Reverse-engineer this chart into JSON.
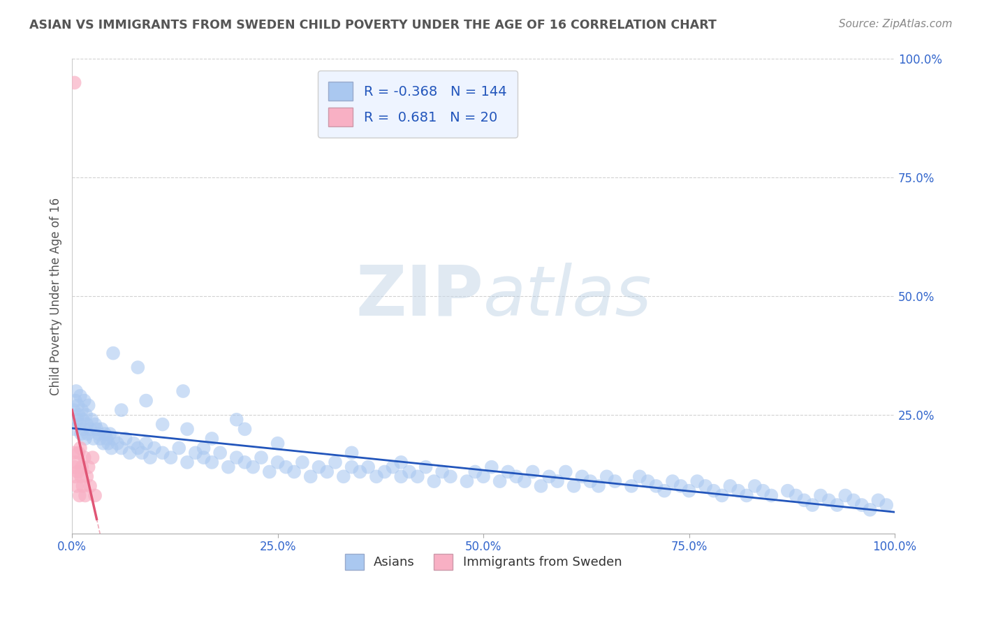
{
  "title": "ASIAN VS IMMIGRANTS FROM SWEDEN CHILD POVERTY UNDER THE AGE OF 16 CORRELATION CHART",
  "source": "Source: ZipAtlas.com",
  "ylabel": "Child Poverty Under the Age of 16",
  "xlim": [
    0,
    1.0
  ],
  "ylim": [
    0,
    1.0
  ],
  "xtick_vals": [
    0.0,
    0.25,
    0.5,
    0.75,
    1.0
  ],
  "xtick_labels": [
    "0.0%",
    "25.0%",
    "50.0%",
    "75.0%",
    "100.0%"
  ],
  "ytick_vals": [
    0.25,
    0.5,
    0.75,
    1.0
  ],
  "ytick_labels": [
    "25.0%",
    "50.0%",
    "75.0%",
    "100.0%"
  ],
  "asian_color": "#aac8f0",
  "sweden_color": "#f8b0c4",
  "asian_line_color": "#2255bb",
  "sweden_line_color": "#e05575",
  "R_asian": -0.368,
  "N_asian": 144,
  "R_sweden": 0.681,
  "N_sweden": 20,
  "legend_label_asian": "Asians",
  "legend_label_sweden": "Immigrants from Sweden",
  "watermark_zip": "ZIP",
  "watermark_atlas": "atlas",
  "background_color": "#ffffff",
  "grid_color": "#cccccc",
  "title_color": "#555555",
  "legend_text_color": "#2255bb",
  "asian_scatter_x": [
    0.002,
    0.003,
    0.004,
    0.005,
    0.006,
    0.007,
    0.008,
    0.009,
    0.01,
    0.011,
    0.012,
    0.013,
    0.014,
    0.015,
    0.016,
    0.017,
    0.018,
    0.019,
    0.02,
    0.022,
    0.024,
    0.026,
    0.028,
    0.03,
    0.032,
    0.034,
    0.036,
    0.038,
    0.04,
    0.042,
    0.044,
    0.046,
    0.048,
    0.05,
    0.055,
    0.06,
    0.065,
    0.07,
    0.075,
    0.08,
    0.085,
    0.09,
    0.095,
    0.1,
    0.11,
    0.12,
    0.13,
    0.14,
    0.15,
    0.16,
    0.17,
    0.18,
    0.19,
    0.2,
    0.21,
    0.22,
    0.23,
    0.24,
    0.25,
    0.26,
    0.27,
    0.28,
    0.29,
    0.3,
    0.31,
    0.32,
    0.33,
    0.34,
    0.35,
    0.36,
    0.37,
    0.38,
    0.39,
    0.4,
    0.41,
    0.42,
    0.43,
    0.44,
    0.45,
    0.46,
    0.48,
    0.49,
    0.5,
    0.51,
    0.52,
    0.53,
    0.54,
    0.55,
    0.56,
    0.57,
    0.58,
    0.59,
    0.6,
    0.61,
    0.62,
    0.63,
    0.64,
    0.65,
    0.66,
    0.68,
    0.69,
    0.7,
    0.71,
    0.72,
    0.73,
    0.74,
    0.75,
    0.76,
    0.77,
    0.78,
    0.79,
    0.8,
    0.81,
    0.82,
    0.83,
    0.84,
    0.85,
    0.87,
    0.88,
    0.89,
    0.9,
    0.91,
    0.92,
    0.93,
    0.94,
    0.95,
    0.96,
    0.97,
    0.98,
    0.99,
    0.05,
    0.08,
    0.11,
    0.17,
    0.135,
    0.06,
    0.09,
    0.14,
    0.2,
    0.16,
    0.21,
    0.25,
    0.34,
    0.4
  ],
  "asian_scatter_y": [
    0.26,
    0.22,
    0.28,
    0.3,
    0.24,
    0.27,
    0.25,
    0.23,
    0.29,
    0.21,
    0.26,
    0.24,
    0.22,
    0.28,
    0.2,
    0.25,
    0.23,
    0.21,
    0.27,
    0.22,
    0.24,
    0.2,
    0.23,
    0.22,
    0.21,
    0.2,
    0.22,
    0.19,
    0.21,
    0.2,
    0.19,
    0.21,
    0.18,
    0.2,
    0.19,
    0.18,
    0.2,
    0.17,
    0.19,
    0.18,
    0.17,
    0.19,
    0.16,
    0.18,
    0.17,
    0.16,
    0.18,
    0.15,
    0.17,
    0.16,
    0.15,
    0.17,
    0.14,
    0.16,
    0.15,
    0.14,
    0.16,
    0.13,
    0.15,
    0.14,
    0.13,
    0.15,
    0.12,
    0.14,
    0.13,
    0.15,
    0.12,
    0.14,
    0.13,
    0.14,
    0.12,
    0.13,
    0.14,
    0.12,
    0.13,
    0.12,
    0.14,
    0.11,
    0.13,
    0.12,
    0.11,
    0.13,
    0.12,
    0.14,
    0.11,
    0.13,
    0.12,
    0.11,
    0.13,
    0.1,
    0.12,
    0.11,
    0.13,
    0.1,
    0.12,
    0.11,
    0.1,
    0.12,
    0.11,
    0.1,
    0.12,
    0.11,
    0.1,
    0.09,
    0.11,
    0.1,
    0.09,
    0.11,
    0.1,
    0.09,
    0.08,
    0.1,
    0.09,
    0.08,
    0.1,
    0.09,
    0.08,
    0.09,
    0.08,
    0.07,
    0.06,
    0.08,
    0.07,
    0.06,
    0.08,
    0.07,
    0.06,
    0.05,
    0.07,
    0.06,
    0.38,
    0.35,
    0.23,
    0.2,
    0.3,
    0.26,
    0.28,
    0.22,
    0.24,
    0.18,
    0.22,
    0.19,
    0.17,
    0.15
  ],
  "sweden_scatter_x": [
    0.002,
    0.003,
    0.004,
    0.005,
    0.006,
    0.007,
    0.008,
    0.009,
    0.01,
    0.011,
    0.012,
    0.013,
    0.015,
    0.016,
    0.018,
    0.02,
    0.022,
    0.025,
    0.028,
    0.003
  ],
  "sweden_scatter_y": [
    0.17,
    0.14,
    0.12,
    0.15,
    0.1,
    0.13,
    0.17,
    0.08,
    0.18,
    0.12,
    0.14,
    0.1,
    0.16,
    0.08,
    0.12,
    0.14,
    0.1,
    0.16,
    0.08,
    0.95
  ]
}
